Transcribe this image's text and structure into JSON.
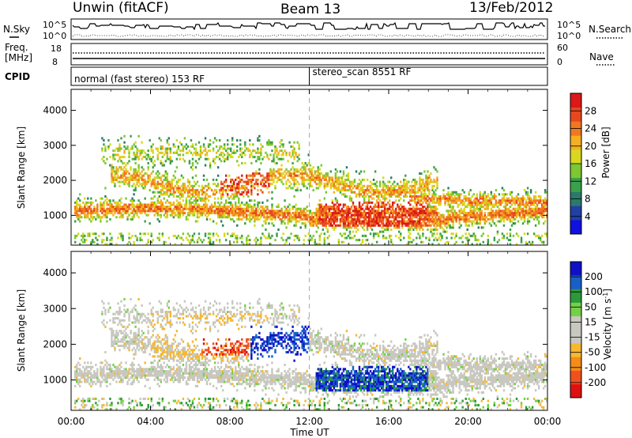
{
  "header": {
    "station": "Unwin (fitACF)",
    "beam": "Beam 13",
    "date": "13/Feb/2012"
  },
  "strips": {
    "nsky_label": "N.Sky",
    "nsearch_label": "N.Search",
    "noise_ticks": [
      "10^5",
      "10^0"
    ],
    "freq_label_1": "Freq.",
    "freq_label_2": "[MHz]",
    "freq_ticks": [
      "18",
      "8"
    ],
    "nave_label": "Nave",
    "nave_ticks": [
      "60",
      "0"
    ],
    "cpid_label": "CPID",
    "cpid_segments": [
      {
        "name": "normal (fast stereo) 153 RF",
        "start": 0,
        "end": 12
      },
      {
        "name": "stereo_scan 8551 RF",
        "start": 12,
        "end": 24
      }
    ]
  },
  "colors": {
    "power": [
      "#1010e0",
      "#2040a8",
      "#2a7a6a",
      "#3aa04a",
      "#7cc830",
      "#d8d820",
      "#f4b020",
      "#f07820",
      "#e84820",
      "#dc1818"
    ],
    "velocity": [
      "#e01010",
      "#f05020",
      "#f48c18",
      "#f6b830",
      "#c8c8c0",
      "#c8c8c0",
      "#74d048",
      "#2c9a38",
      "#1860c8",
      "#1010c8"
    ],
    "grid_dash": "#aaaaaa"
  },
  "chart_data": [
    {
      "type": "heatmap",
      "panel": "power",
      "ylabel": "Slant Range [km]",
      "ylim": [
        150,
        4600
      ],
      "yticks": [
        1000,
        2000,
        3000,
        4000
      ],
      "xlim": [
        0,
        24
      ],
      "xticks": [
        "00:00",
        "04:00",
        "08:00",
        "12:00",
        "16:00",
        "20:00",
        "00:00"
      ],
      "colorbar": {
        "label": "Power [dB]",
        "range": [
          0,
          32
        ],
        "ticks": [
          4,
          8,
          12,
          16,
          20,
          24,
          28
        ]
      },
      "marker_time": 12
    },
    {
      "type": "heatmap",
      "panel": "velocity",
      "ylabel": "Slant Range [km]",
      "ylim": [
        150,
        4600
      ],
      "yticks": [
        1000,
        2000,
        3000,
        4000
      ],
      "xlim": [
        0,
        24
      ],
      "xticks": [
        "00:00",
        "04:00",
        "08:00",
        "12:00",
        "16:00",
        "20:00",
        "00:00"
      ],
      "xlabel": "Time UT",
      "colorbar": {
        "label": "Velocity [m s^-1]",
        "range": [
          -250,
          250
        ],
        "ticks": [
          "200",
          "100",
          "50",
          "15",
          "-15",
          "-50",
          "-100",
          "-200"
        ]
      },
      "marker_time": 12
    }
  ]
}
